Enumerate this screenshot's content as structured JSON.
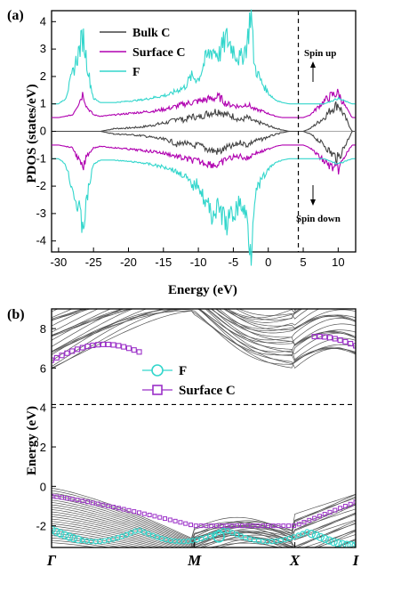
{
  "chart_data": [
    {
      "type": "line",
      "panel_label": "(a)",
      "xlabel": "Energy (eV)",
      "ylabel": "PDOS (states/eV)",
      "xlim": [
        -31,
        12.5
      ],
      "ylim": [
        -4.4,
        4.4
      ],
      "xticks": [
        -30,
        -25,
        -20,
        -15,
        -10,
        -5,
        0,
        5,
        10
      ],
      "yticks": [
        -4,
        -3,
        -2,
        -1,
        0,
        1,
        2,
        3,
        4
      ],
      "ytick_labels": [
        "-4",
        "-3",
        "-2",
        "-1",
        "0",
        "1",
        "2",
        "3",
        "4"
      ],
      "fermi_level": 4.3,
      "annotations": [
        "Spin up",
        "Spin down"
      ],
      "legend_position": "top-left",
      "series": [
        {
          "name": "Bulk C",
          "color": "#444444",
          "offset": 0.0,
          "x": [
            -24,
            -22,
            -20,
            -18,
            -16,
            -14,
            -13,
            -12,
            -11,
            -10,
            -9,
            -8,
            -7,
            -6,
            -5,
            -4,
            -3,
            -2,
            -1,
            0,
            1,
            2,
            3,
            4,
            5,
            6,
            7,
            8,
            9,
            10,
            11,
            12
          ],
          "values": [
            0,
            0.1,
            0.12,
            0.16,
            0.25,
            0.35,
            0.5,
            0.4,
            0.55,
            0.5,
            0.62,
            0.7,
            0.75,
            0.6,
            0.55,
            0.4,
            0.5,
            0.35,
            0.3,
            0.2,
            0.12,
            0.05,
            0,
            0,
            0,
            0.1,
            0.3,
            0.5,
            0.8,
            1.0,
            0.5,
            0
          ]
        },
        {
          "name": "Surface C",
          "color": "#b000b0",
          "offset": 0.5,
          "x": [
            -30,
            -28,
            -27,
            -26.5,
            -26,
            -25,
            -24,
            -22,
            -20,
            -18,
            -16,
            -14,
            -12,
            -10,
            -8,
            -7,
            -6,
            -5,
            -4,
            -3,
            -2,
            -1,
            0,
            1,
            2,
            3,
            4,
            5,
            6,
            7,
            8,
            9,
            10,
            11,
            12
          ],
          "values": [
            0,
            0.1,
            0.6,
            0.9,
            0.4,
            0.1,
            0.05,
            0.1,
            0.15,
            0.2,
            0.25,
            0.35,
            0.5,
            0.6,
            0.7,
            0.75,
            0.5,
            0.45,
            0.4,
            0.5,
            0.3,
            0.25,
            0.15,
            0.05,
            0,
            0,
            0,
            0,
            0.1,
            0.35,
            0.6,
            0.8,
            0.9,
            0.4,
            0
          ]
        },
        {
          "name": "F",
          "color": "#33d6cc",
          "offset": 1.0,
          "x": [
            -30,
            -29,
            -28,
            -27,
            -26.5,
            -26,
            -25.5,
            -25,
            -24,
            -22,
            -20,
            -18,
            -16,
            -15,
            -14,
            -13,
            -12,
            -11,
            -10,
            -9,
            -8,
            -7,
            -6,
            -5,
            -4,
            -3,
            -2.5,
            -2,
            -1,
            0,
            1,
            2,
            3,
            4,
            5,
            6,
            7,
            8,
            9,
            10,
            11,
            12
          ],
          "values": [
            0,
            0.2,
            1.1,
            2.0,
            2.5,
            1.6,
            0.8,
            0.2,
            0.05,
            0.05,
            0.1,
            0.15,
            0.25,
            0.3,
            0.35,
            0.5,
            0.6,
            1.0,
            0.9,
            1.6,
            2.0,
            1.8,
            2.4,
            2.0,
            1.6,
            2.2,
            3.5,
            1.4,
            0.8,
            0.4,
            0.15,
            0.05,
            0,
            0,
            0,
            0,
            0,
            0,
            0.1,
            0.2,
            0.1,
            0
          ]
        }
      ]
    },
    {
      "type": "line",
      "panel_label": "(b)",
      "xlabel": "",
      "ylabel": "Energy (eV)",
      "ylim": [
        -3.1,
        9.0
      ],
      "yticks": [
        -2,
        0,
        2,
        4,
        6,
        8
      ],
      "ytick_labels": [
        "-2",
        "0",
        "2",
        "4",
        "6",
        "8"
      ],
      "xtick_labels": [
        "Γ",
        "M",
        "X",
        "I"
      ],
      "kpoints": [
        0,
        0.47,
        0.8,
        1.0
      ],
      "fermi_level": 4.15,
      "legend_position": "upper-middle",
      "legend": [
        {
          "name": "F",
          "color": "#33d6cc",
          "marker": "circle"
        },
        {
          "name": "Surface C",
          "color": "#9b30c8",
          "marker": "square"
        }
      ]
    }
  ]
}
